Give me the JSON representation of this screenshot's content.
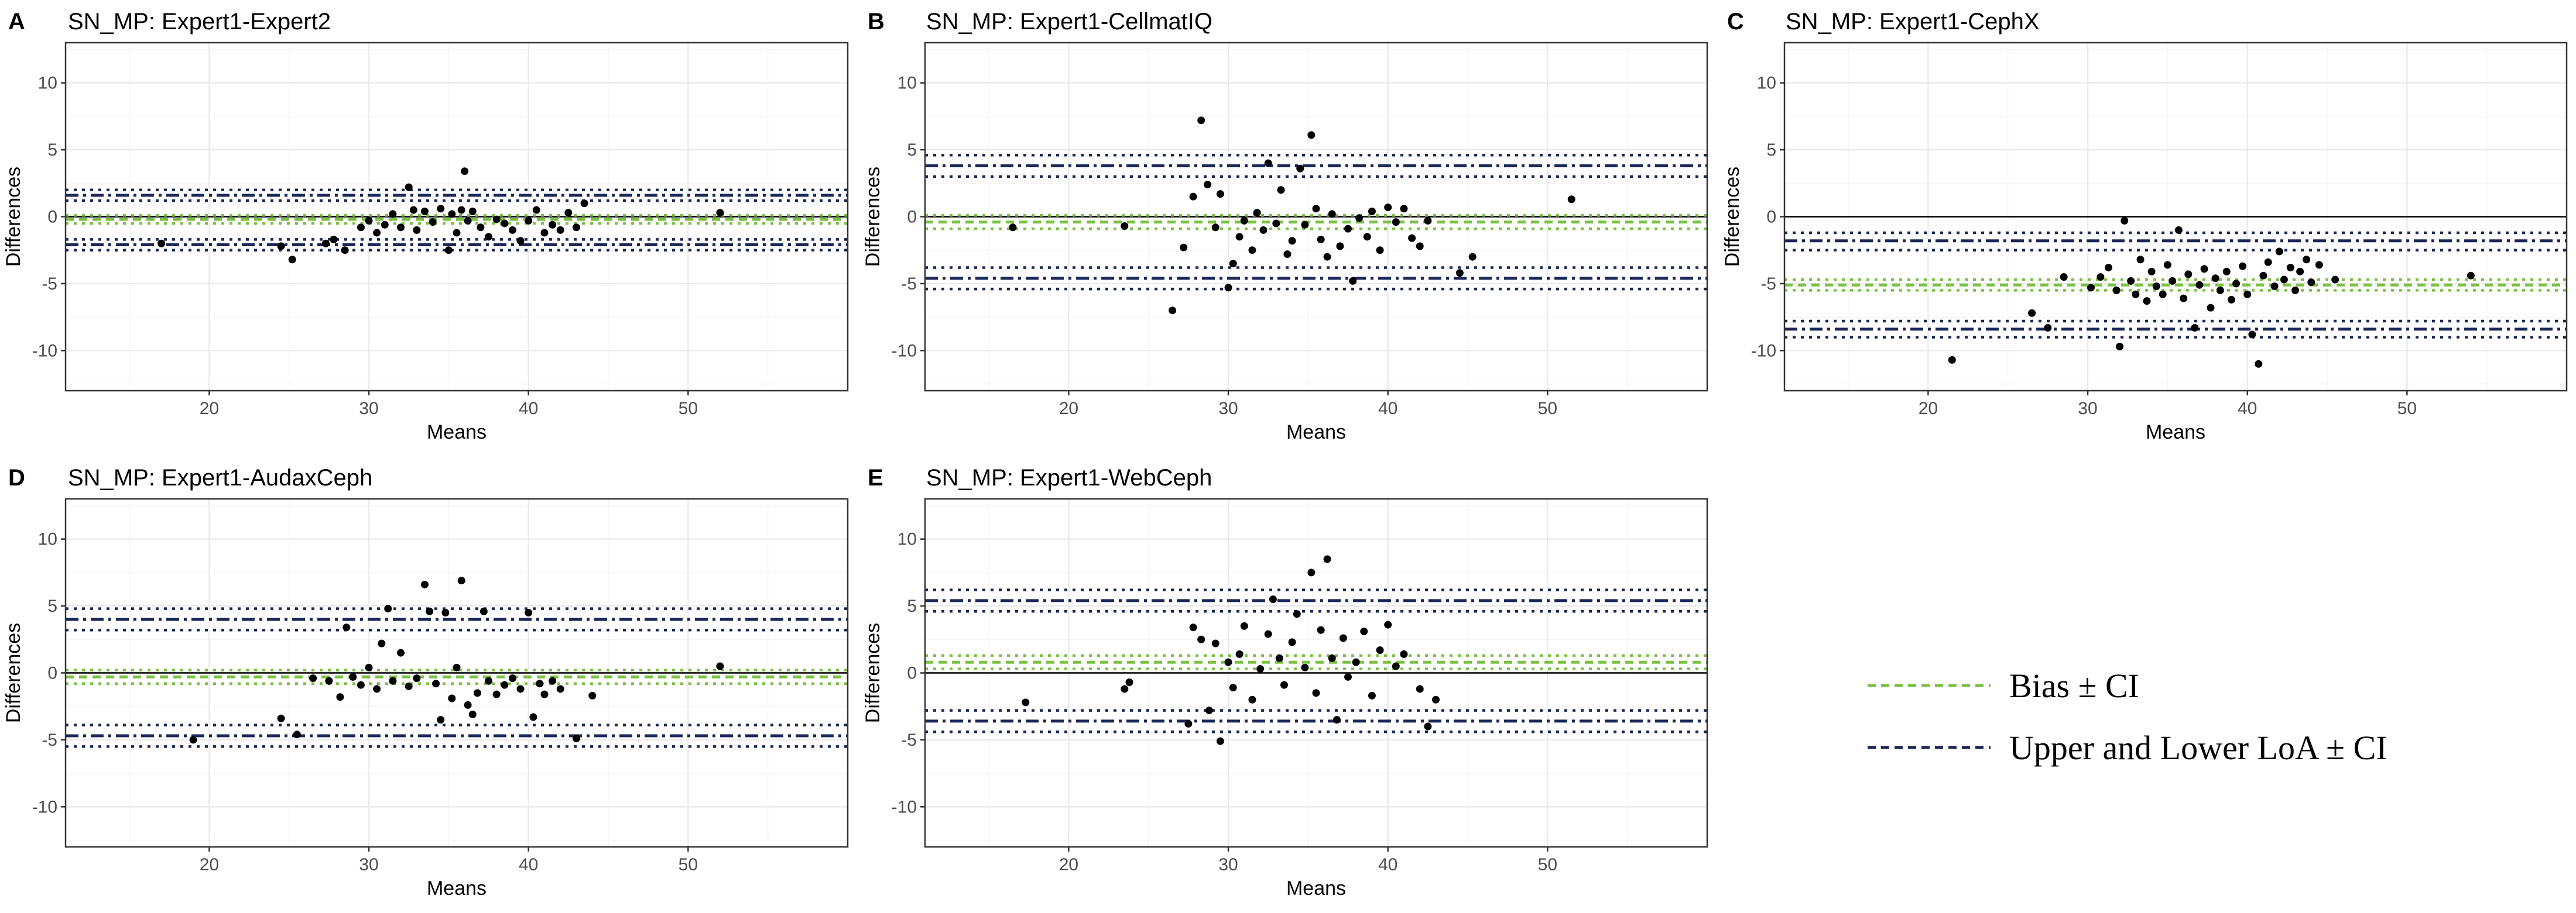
{
  "figure": {
    "legend": [
      {
        "label": "Bias ± CI",
        "color": "#7ac143",
        "style": "dashed"
      },
      {
        "label": "Upper and Lower LoA ± CI",
        "color": "#1a2657",
        "style": "dashed"
      }
    ]
  },
  "colors": {
    "bias": "#7ac143",
    "loa": "#1a2657",
    "points": "#000000",
    "grid_major": "#ebebeb",
    "grid_minor": "#f5f5f5",
    "panel_border": "#333333"
  },
  "chart_data": [
    {
      "type": "scatter",
      "panel_letter": "A",
      "title": "SN_MP: Expert1-Expert2",
      "xlabel": "Means",
      "ylabel": "Differences",
      "xlim": [
        11,
        60
      ],
      "ylim": [
        -13,
        13
      ],
      "xticks": [
        20,
        30,
        40,
        50
      ],
      "yticks": [
        -10,
        -5,
        0,
        5,
        10
      ],
      "zero_line": true,
      "bias": {
        "value": -0.2,
        "ci": [
          -0.5,
          0.1
        ]
      },
      "upper_loa": {
        "value": 1.6,
        "ci": [
          1.2,
          2.0
        ]
      },
      "lower_loa": {
        "value": -2.1,
        "ci": [
          -2.5,
          -1.7
        ]
      },
      "points": [
        [
          17,
          -2
        ],
        [
          24.5,
          -2.2
        ],
        [
          25.2,
          -3.2
        ],
        [
          27.3,
          -2
        ],
        [
          27.8,
          -1.7
        ],
        [
          28.5,
          -2.5
        ],
        [
          29.5,
          -0.8
        ],
        [
          30,
          -0.3
        ],
        [
          30.5,
          -1.2
        ],
        [
          31,
          -0.6
        ],
        [
          31.5,
          0.2
        ],
        [
          32,
          -0.8
        ],
        [
          32.5,
          2.2
        ],
        [
          32.8,
          0.5
        ],
        [
          33,
          -1
        ],
        [
          33.5,
          0.4
        ],
        [
          34,
          -0.4
        ],
        [
          34.5,
          0.6
        ],
        [
          35,
          -2.5
        ],
        [
          35.2,
          0.2
        ],
        [
          35.5,
          -1.2
        ],
        [
          35.8,
          0.5
        ],
        [
          36,
          3.4
        ],
        [
          36.2,
          -0.3
        ],
        [
          36.5,
          0.4
        ],
        [
          37,
          -0.8
        ],
        [
          37.5,
          -1.5
        ],
        [
          38,
          -0.2
        ],
        [
          38.5,
          -0.5
        ],
        [
          39,
          -1
        ],
        [
          39.5,
          -1.8
        ],
        [
          40,
          -0.3
        ],
        [
          40.5,
          0.5
        ],
        [
          41,
          -1.2
        ],
        [
          41.5,
          -0.6
        ],
        [
          42,
          -1
        ],
        [
          42.5,
          0.3
        ],
        [
          43,
          -0.8
        ],
        [
          43.5,
          1
        ],
        [
          52,
          0.3
        ]
      ]
    },
    {
      "type": "scatter",
      "panel_letter": "B",
      "title": "SN_MP: Expert1-CellmatIQ",
      "xlabel": "Means",
      "ylabel": "Differences",
      "xlim": [
        11,
        60
      ],
      "ylim": [
        -13,
        13
      ],
      "xticks": [
        20,
        30,
        40,
        50
      ],
      "yticks": [
        -10,
        -5,
        0,
        5,
        10
      ],
      "zero_line": true,
      "bias": {
        "value": -0.4,
        "ci": [
          -0.9,
          0.1
        ]
      },
      "upper_loa": {
        "value": 3.8,
        "ci": [
          3.0,
          4.6
        ]
      },
      "lower_loa": {
        "value": -4.6,
        "ci": [
          -5.4,
          -3.8
        ]
      },
      "points": [
        [
          16.5,
          -0.8
        ],
        [
          23.5,
          -0.7
        ],
        [
          26.5,
          -7
        ],
        [
          27.2,
          -2.3
        ],
        [
          27.8,
          1.5
        ],
        [
          28.3,
          7.2
        ],
        [
          28.7,
          2.4
        ],
        [
          29.2,
          -0.8
        ],
        [
          29.5,
          1.7
        ],
        [
          30,
          -5.3
        ],
        [
          30.3,
          -3.5
        ],
        [
          30.7,
          -1.5
        ],
        [
          31,
          -0.3
        ],
        [
          31.5,
          -2.5
        ],
        [
          31.8,
          0.3
        ],
        [
          32.2,
          -1
        ],
        [
          32.5,
          4
        ],
        [
          33,
          -0.5
        ],
        [
          33.3,
          2
        ],
        [
          33.7,
          -2.8
        ],
        [
          34,
          -1.8
        ],
        [
          34.5,
          3.6
        ],
        [
          34.8,
          -0.6
        ],
        [
          35.2,
          6.1
        ],
        [
          35.5,
          0.6
        ],
        [
          35.8,
          -1.7
        ],
        [
          36.2,
          -3
        ],
        [
          36.5,
          0.2
        ],
        [
          37,
          -2.2
        ],
        [
          37.5,
          -0.9
        ],
        [
          37.8,
          -4.8
        ],
        [
          38.2,
          -0.1
        ],
        [
          38.7,
          -1.5
        ],
        [
          39,
          0.4
        ],
        [
          39.5,
          -2.5
        ],
        [
          40,
          0.7
        ],
        [
          40.5,
          -0.4
        ],
        [
          41,
          0.6
        ],
        [
          41.5,
          -1.6
        ],
        [
          42,
          -2.2
        ],
        [
          42.5,
          -0.3
        ],
        [
          44.5,
          -4.2
        ],
        [
          45.3,
          -3
        ],
        [
          51.5,
          1.3
        ]
      ]
    },
    {
      "type": "scatter",
      "panel_letter": "C",
      "title": "SN_MP: Expert1-CephX",
      "xlabel": "Means",
      "ylabel": "Differences",
      "xlim": [
        11,
        60
      ],
      "ylim": [
        -13,
        13
      ],
      "xticks": [
        20,
        30,
        40,
        50
      ],
      "yticks": [
        -10,
        -5,
        0,
        5,
        10
      ],
      "zero_line": true,
      "bias": {
        "value": -5.1,
        "ci": [
          -5.5,
          -4.7
        ]
      },
      "upper_loa": {
        "value": -1.8,
        "ci": [
          -2.5,
          -1.2
        ]
      },
      "lower_loa": {
        "value": -8.4,
        "ci": [
          -9.0,
          -7.8
        ]
      },
      "points": [
        [
          21.5,
          -10.7
        ],
        [
          26.5,
          -7.2
        ],
        [
          27.5,
          -8.3
        ],
        [
          28.5,
          -4.5
        ],
        [
          30.2,
          -5.3
        ],
        [
          30.8,
          -4.5
        ],
        [
          31.3,
          -3.8
        ],
        [
          31.8,
          -5.5
        ],
        [
          32,
          -9.7
        ],
        [
          32.3,
          -0.3
        ],
        [
          32.7,
          -4.8
        ],
        [
          33,
          -5.8
        ],
        [
          33.3,
          -3.2
        ],
        [
          33.7,
          -6.3
        ],
        [
          34,
          -4.1
        ],
        [
          34.3,
          -5.2
        ],
        [
          34.7,
          -5.8
        ],
        [
          35,
          -3.6
        ],
        [
          35.3,
          -4.8
        ],
        [
          35.7,
          -1
        ],
        [
          36,
          -6.1
        ],
        [
          36.3,
          -4.3
        ],
        [
          36.7,
          -8.3
        ],
        [
          37,
          -5.1
        ],
        [
          37.3,
          -3.9
        ],
        [
          37.7,
          -6.8
        ],
        [
          38,
          -4.6
        ],
        [
          38.3,
          -5.5
        ],
        [
          38.7,
          -4.1
        ],
        [
          39,
          -6.2
        ],
        [
          39.3,
          -5
        ],
        [
          39.7,
          -3.7
        ],
        [
          40,
          -5.8
        ],
        [
          40.3,
          -8.8
        ],
        [
          40.7,
          -11
        ],
        [
          41,
          -4.4
        ],
        [
          41.3,
          -3.4
        ],
        [
          41.7,
          -5.2
        ],
        [
          42,
          -2.6
        ],
        [
          42.3,
          -4.7
        ],
        [
          42.7,
          -3.8
        ],
        [
          43,
          -5.5
        ],
        [
          43.3,
          -4.1
        ],
        [
          43.7,
          -3.2
        ],
        [
          44,
          -4.9
        ],
        [
          44.5,
          -3.6
        ],
        [
          45.5,
          -4.7
        ],
        [
          54,
          -4.4
        ]
      ]
    },
    {
      "type": "scatter",
      "panel_letter": "D",
      "title": "SN_MP: Expert1-AudaxCeph",
      "xlabel": "Means",
      "ylabel": "Differences",
      "xlim": [
        11,
        60
      ],
      "ylim": [
        -13,
        13
      ],
      "xticks": [
        20,
        30,
        40,
        50
      ],
      "yticks": [
        -10,
        -5,
        0,
        5,
        10
      ],
      "zero_line": true,
      "bias": {
        "value": -0.3,
        "ci": [
          -0.8,
          0.2
        ]
      },
      "upper_loa": {
        "value": 4.0,
        "ci": [
          3.2,
          4.8
        ]
      },
      "lower_loa": {
        "value": -4.7,
        "ci": [
          -5.5,
          -3.9
        ]
      },
      "points": [
        [
          19,
          -5
        ],
        [
          24.5,
          -3.4
        ],
        [
          25.5,
          -4.6
        ],
        [
          26.5,
          -0.4
        ],
        [
          27.5,
          -0.6
        ],
        [
          28.2,
          -1.8
        ],
        [
          28.6,
          3.4
        ],
        [
          29,
          -0.3
        ],
        [
          29.5,
          -0.9
        ],
        [
          30,
          0.4
        ],
        [
          30.5,
          -1.2
        ],
        [
          30.8,
          2.2
        ],
        [
          31.2,
          4.8
        ],
        [
          31.5,
          -0.6
        ],
        [
          32,
          1.5
        ],
        [
          32.5,
          -1
        ],
        [
          33,
          -0.4
        ],
        [
          33.5,
          6.6
        ],
        [
          33.8,
          4.6
        ],
        [
          34.2,
          -0.8
        ],
        [
          34.5,
          -3.5
        ],
        [
          34.8,
          4.5
        ],
        [
          35.2,
          -1.9
        ],
        [
          35.5,
          0.4
        ],
        [
          35.8,
          6.9
        ],
        [
          36.2,
          -2.4
        ],
        [
          36.5,
          -3.1
        ],
        [
          36.8,
          -1.5
        ],
        [
          37.2,
          4.6
        ],
        [
          37.5,
          -0.6
        ],
        [
          38,
          -1.6
        ],
        [
          38.5,
          -0.9
        ],
        [
          39,
          -0.4
        ],
        [
          39.5,
          -1.2
        ],
        [
          40,
          4.5
        ],
        [
          40.3,
          -3.3
        ],
        [
          40.7,
          -0.8
        ],
        [
          41,
          -1.6
        ],
        [
          41.5,
          -0.6
        ],
        [
          42,
          -1.2
        ],
        [
          43,
          -4.9
        ],
        [
          44,
          -1.7
        ],
        [
          52,
          0.5
        ]
      ]
    },
    {
      "type": "scatter",
      "panel_letter": "E",
      "title": "SN_MP: Expert1-WebCeph",
      "xlabel": "Means",
      "ylabel": "Differences",
      "xlim": [
        11,
        60
      ],
      "ylim": [
        -13,
        13
      ],
      "xticks": [
        20,
        30,
        40,
        50
      ],
      "yticks": [
        -10,
        -5,
        0,
        5,
        10
      ],
      "zero_line": true,
      "bias": {
        "value": 0.8,
        "ci": [
          0.3,
          1.3
        ]
      },
      "upper_loa": {
        "value": 5.4,
        "ci": [
          4.6,
          6.2
        ]
      },
      "lower_loa": {
        "value": -3.6,
        "ci": [
          -4.4,
          -2.8
        ]
      },
      "points": [
        [
          17.3,
          -2.2
        ],
        [
          23.8,
          -0.7
        ],
        [
          23.5,
          -1.2
        ],
        [
          27.5,
          -3.8
        ],
        [
          27.8,
          3.4
        ],
        [
          28.3,
          2.5
        ],
        [
          28.8,
          -2.8
        ],
        [
          29.2,
          2.2
        ],
        [
          29.5,
          -5.1
        ],
        [
          30,
          0.8
        ],
        [
          30.3,
          -1.1
        ],
        [
          30.7,
          1.4
        ],
        [
          31,
          3.5
        ],
        [
          31.5,
          -2
        ],
        [
          32,
          0.3
        ],
        [
          32.5,
          2.9
        ],
        [
          32.8,
          5.5
        ],
        [
          33.2,
          1.1
        ],
        [
          33.5,
          -0.9
        ],
        [
          34,
          2.3
        ],
        [
          34.3,
          4.4
        ],
        [
          34.8,
          0.4
        ],
        [
          35.2,
          7.5
        ],
        [
          35.5,
          -1.5
        ],
        [
          35.8,
          3.2
        ],
        [
          36.2,
          8.5
        ],
        [
          36.5,
          1.1
        ],
        [
          36.8,
          -3.5
        ],
        [
          37.2,
          2.6
        ],
        [
          37.5,
          -0.3
        ],
        [
          38,
          0.8
        ],
        [
          38.5,
          3.1
        ],
        [
          39,
          -1.7
        ],
        [
          39.5,
          1.7
        ],
        [
          40,
          3.6
        ],
        [
          40.5,
          0.5
        ],
        [
          41,
          1.4
        ],
        [
          42,
          -1.2
        ],
        [
          42.5,
          -4
        ],
        [
          43,
          -2
        ]
      ]
    }
  ]
}
